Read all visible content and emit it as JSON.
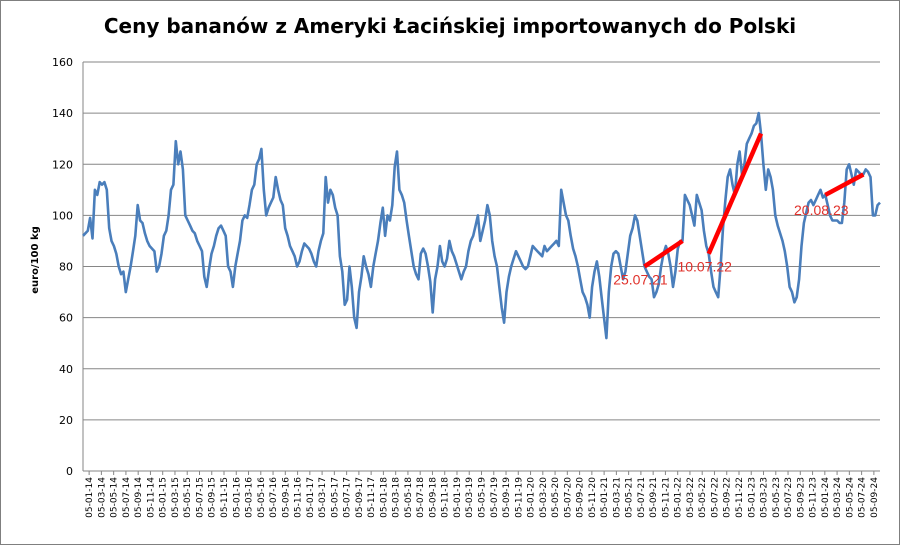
{
  "chart_data": {
    "type": "line",
    "title": "Ceny bananów z Ameryki Łacińskiej importowanych do Polski",
    "ylabel": "euro/100 kg",
    "ylim": [
      0,
      160
    ],
    "yticks": [
      0,
      20,
      40,
      60,
      80,
      100,
      120,
      140,
      160
    ],
    "grid": true,
    "line_color": "#4a7ebb",
    "x_tick_labels": [
      "05-01-14",
      "05-03-14",
      "05-05-14",
      "05-07-14",
      "05-09-14",
      "05-11-14",
      "05-01-15",
      "05-03-15",
      "05-05-15",
      "05-07-15",
      "05-09-15",
      "05-11-15",
      "05-01-16",
      "05-03-16",
      "05-05-16",
      "05-07-16",
      "05-09-16",
      "05-11-16",
      "05-01-17",
      "05-03-17",
      "05-05-17",
      "05-07-17",
      "05-09-17",
      "05-11-17",
      "05-01-18",
      "05-03-18",
      "05-05-18",
      "05-07-18",
      "05-09-18",
      "05-11-18",
      "05-01-19",
      "05-03-19",
      "05-05-19",
      "05-07-19",
      "05-09-19",
      "05-11-19",
      "05-01-20",
      "05-03-20",
      "05-05-20",
      "05-07-20",
      "05-09-20",
      "05-11-20",
      "05-01-21",
      "05-03-21",
      "05-05-21",
      "05-07-21",
      "05-09-21",
      "05-11-21",
      "05-01-22",
      "05-03-22",
      "05-05-22",
      "05-07-22",
      "05-09-22",
      "05-11-22",
      "05-01-23",
      "05-03-23",
      "05-05-23",
      "05-07-23",
      "05-09-23",
      "05-11-23",
      "05-01-24",
      "05-03-24",
      "05-05-24",
      "05-07-24",
      "05-09-24"
    ],
    "series": [
      {
        "values": [
          92,
          93,
          94,
          99,
          91,
          110,
          108,
          113,
          112,
          113,
          110,
          95,
          90,
          88,
          85,
          80,
          77,
          78,
          70,
          75,
          80,
          86,
          92,
          104,
          98,
          97,
          93,
          90,
          88,
          87,
          86,
          78,
          80,
          85,
          92,
          94,
          100,
          110,
          112,
          129,
          120,
          125,
          118,
          100,
          98,
          96,
          94,
          93,
          90,
          88,
          86,
          76,
          72,
          79,
          85,
          88,
          92,
          95,
          96,
          94,
          92,
          80,
          78,
          72,
          80,
          85,
          90,
          98,
          100,
          99,
          104,
          110,
          112,
          120,
          122,
          126,
          110,
          100,
          103,
          105,
          107,
          115,
          110,
          106,
          104,
          95,
          92,
          88,
          86,
          84,
          80,
          82,
          86,
          89,
          88,
          87,
          85,
          82,
          80,
          86,
          90,
          93,
          115,
          105,
          110,
          108,
          103,
          100,
          84,
          78,
          65,
          67,
          80,
          72,
          60,
          56,
          70,
          76,
          84,
          80,
          77,
          72,
          80,
          85,
          90,
          97,
          103,
          92,
          100,
          98,
          104,
          119,
          125,
          110,
          108,
          105,
          98,
          92,
          86,
          80,
          77,
          75,
          85,
          87,
          85,
          80,
          74,
          62,
          75,
          80,
          88,
          82,
          80,
          83,
          90,
          86,
          84,
          81,
          78,
          75,
          78,
          80,
          86,
          90,
          92,
          96,
          100,
          90,
          94,
          98,
          104,
          100,
          90,
          84,
          80,
          72,
          64,
          58,
          70,
          76,
          80,
          83,
          86,
          84,
          82,
          80,
          79,
          80,
          84,
          88,
          87,
          86,
          85,
          84,
          88,
          86,
          87,
          88,
          89,
          90,
          88,
          110,
          105,
          100,
          98,
          92,
          87,
          84,
          80,
          75,
          70,
          68,
          65,
          60,
          72,
          78,
          82,
          76,
          68,
          60,
          52,
          70,
          80,
          85,
          86,
          85,
          80,
          75,
          78,
          85,
          92,
          95,
          100,
          98,
          92,
          86,
          80,
          78,
          76,
          75,
          68,
          70,
          73,
          80,
          85,
          88,
          85,
          80,
          72,
          78,
          87,
          90,
          90,
          108,
          106,
          104,
          100,
          96,
          108,
          105,
          102,
          94,
          88,
          85,
          78,
          72,
          70,
          68,
          80,
          95,
          106,
          115,
          118,
          112,
          108,
          120,
          125,
          116,
          120,
          128,
          130,
          132,
          135,
          136,
          140,
          132,
          120,
          110,
          118,
          115,
          110,
          100,
          96,
          93,
          90,
          86,
          80,
          72,
          70,
          66,
          68,
          75,
          88,
          97,
          101,
          105,
          106,
          104,
          106,
          108,
          110,
          107,
          108,
          104,
          100,
          98,
          98,
          98,
          97,
          97,
          105,
          118,
          120,
          116,
          112,
          118,
          117,
          116,
          116,
          118,
          117,
          115,
          100,
          100,
          104,
          105
        ]
      }
    ],
    "annotations": [
      {
        "label": "25.07.21",
        "from_index": 236,
        "to_index": 252
      },
      {
        "label": "10.07.22",
        "from_index": 263,
        "to_index": 285
      },
      {
        "label": "20.08.23",
        "from_index": 312,
        "to_index": 328
      }
    ]
  }
}
